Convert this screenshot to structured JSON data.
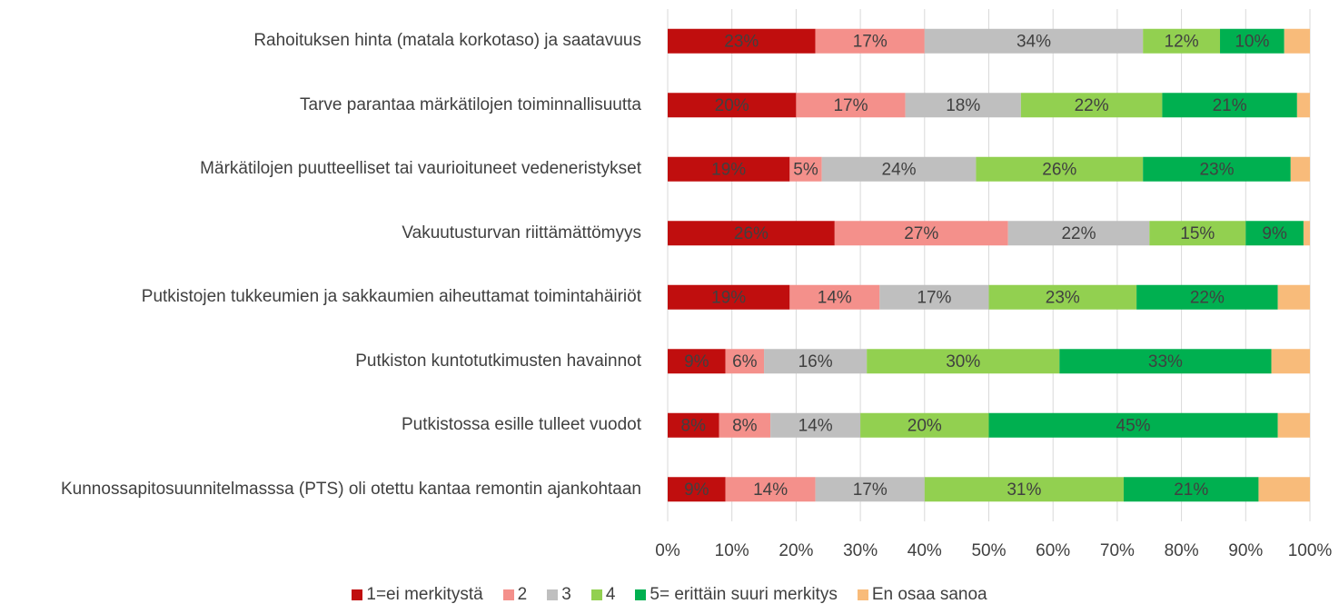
{
  "chart_data": {
    "type": "bar",
    "orientation": "horizontal",
    "stacked": true,
    "categories": [
      "Rahoituksen hinta (matala korkotaso) ja saatavuus",
      "Tarve parantaa märkätilojen toiminnallisuutta",
      "Märkätilojen puutteelliset tai vaurioituneet vedeneristykset",
      "Vakuutusturvan riittämättömyys",
      "Putkistojen tukkeumien ja sakkaumien aiheuttamat toimintahäiriöt",
      "Putkiston kuntotutkimusten havainnot",
      "Putkistossa esille tulleet vuodot",
      "Kunnossapitosuunnitelmasssa (PTS) oli otettu kantaa remontin ajankohtaan"
    ],
    "series": [
      {
        "name": "1=ei merkitystä",
        "color": "#c00e0e",
        "values": [
          23,
          20,
          19,
          26,
          19,
          9,
          8,
          9
        ],
        "value_labels": [
          "23%",
          "20%",
          "19%",
          "26%",
          "19%",
          "9%",
          "8%",
          "9%"
        ]
      },
      {
        "name": "2",
        "color": "#f4908b",
        "values": [
          17,
          17,
          5,
          27,
          14,
          6,
          8,
          14
        ],
        "value_labels": [
          "17%",
          "17%",
          "5%",
          "27%",
          "14%",
          "6%",
          "8%",
          "14%"
        ]
      },
      {
        "name": "3",
        "color": "#bfbfbf",
        "values": [
          34,
          18,
          24,
          22,
          17,
          16,
          14,
          17
        ],
        "value_labels": [
          "34%",
          "18%",
          "24%",
          "22%",
          "17%",
          "16%",
          "14%",
          "17%"
        ]
      },
      {
        "name": "4",
        "color": "#92d050",
        "values": [
          12,
          22,
          26,
          15,
          23,
          30,
          20,
          31
        ],
        "value_labels": [
          "12%",
          "22%",
          "26%",
          "15%",
          "23%",
          "30%",
          "20%",
          "31%"
        ]
      },
      {
        "name": "5= erittäin suuri merkitys",
        "color": "#00b050",
        "values": [
          10,
          21,
          23,
          9,
          22,
          33,
          45,
          21
        ],
        "value_labels": [
          "10%",
          "21%",
          "23%",
          "9%",
          "22%",
          "33%",
          "45%",
          "21%"
        ]
      },
      {
        "name": "En osaa sanoa",
        "color": "#f8bb7a",
        "values": [
          4,
          2,
          3,
          1,
          5,
          6,
          5,
          8
        ]
      }
    ],
    "xlim": [
      0,
      100
    ],
    "xticks": [
      {
        "value": 0,
        "label": "0%"
      },
      {
        "value": 10,
        "label": "10%"
      },
      {
        "value": 20,
        "label": "20%"
      },
      {
        "value": 30,
        "label": "30%"
      },
      {
        "value": 40,
        "label": "40%"
      },
      {
        "value": 50,
        "label": "50%"
      },
      {
        "value": 60,
        "label": "60%"
      },
      {
        "value": 70,
        "label": "70%"
      },
      {
        "value": 80,
        "label": "80%"
      },
      {
        "value": 90,
        "label": "90%"
      },
      {
        "value": 100,
        "label": "100%"
      }
    ],
    "grid": true,
    "legend": "bottom"
  }
}
